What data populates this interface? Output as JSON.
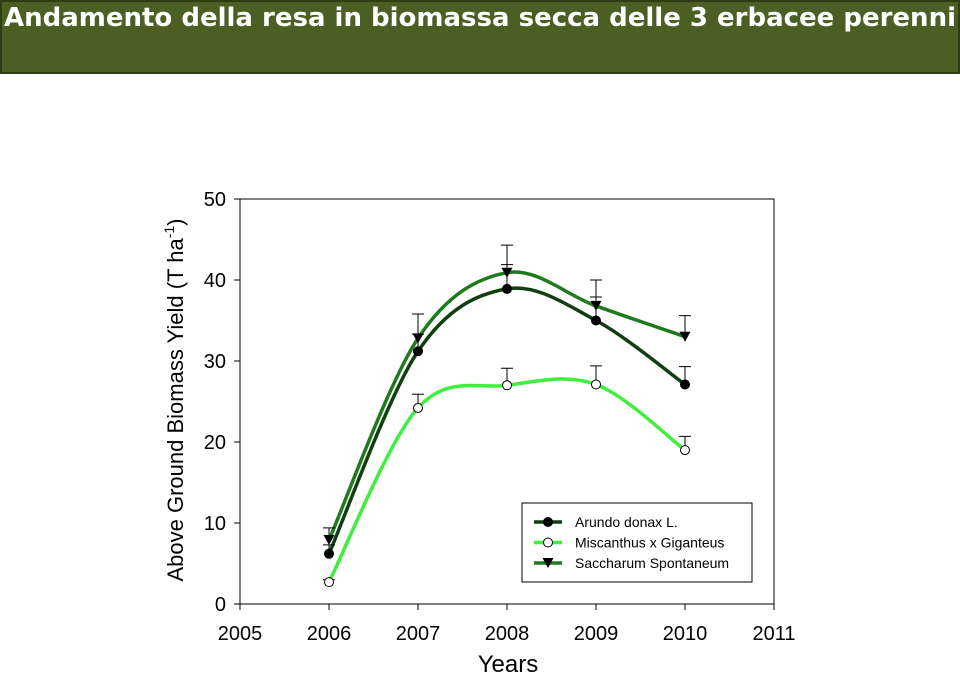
{
  "header": {
    "title": "Andamento della resa in biomassa secca delle 3 erbacee perenni"
  },
  "chart_data": {
    "type": "line",
    "x_label": "Years",
    "y_label": {
      "text": "Above Ground Biomass Yield (T ha",
      "superscript": "-1",
      "suffix": ")"
    },
    "x": [
      2006,
      2007,
      2008,
      2009,
      2010
    ],
    "xlim": [
      2005,
      2011
    ],
    "xticks": [
      2005,
      2006,
      2007,
      2008,
      2009,
      2010,
      2011
    ],
    "ylim": [
      0,
      50
    ],
    "yticks": [
      0,
      10,
      20,
      30,
      40,
      50
    ],
    "legend_position": "lower right",
    "series": [
      {
        "name": "Arundo donax L.",
        "color": "#123f12",
        "marker": "circle-filled",
        "values": [
          6.2,
          31.2,
          38.9,
          35.0,
          27.1
        ],
        "errors": [
          1.1,
          2.1,
          3.0,
          2.9,
          2.2
        ]
      },
      {
        "name": "Miscanthus x Giganteus",
        "color": "#3ef03e",
        "marker": "circle-open",
        "values": [
          2.7,
          24.2,
          27.0,
          27.1,
          19.0
        ],
        "errors": [
          0.3,
          1.7,
          2.1,
          2.3,
          1.7
        ]
      },
      {
        "name": "Saccharum Spontaneum",
        "color": "#1f7a1f",
        "marker": "triangle-down",
        "values": [
          7.9,
          32.8,
          40.9,
          36.8,
          33.0
        ],
        "errors": [
          1.5,
          3.0,
          3.4,
          3.2,
          2.6
        ]
      }
    ]
  }
}
